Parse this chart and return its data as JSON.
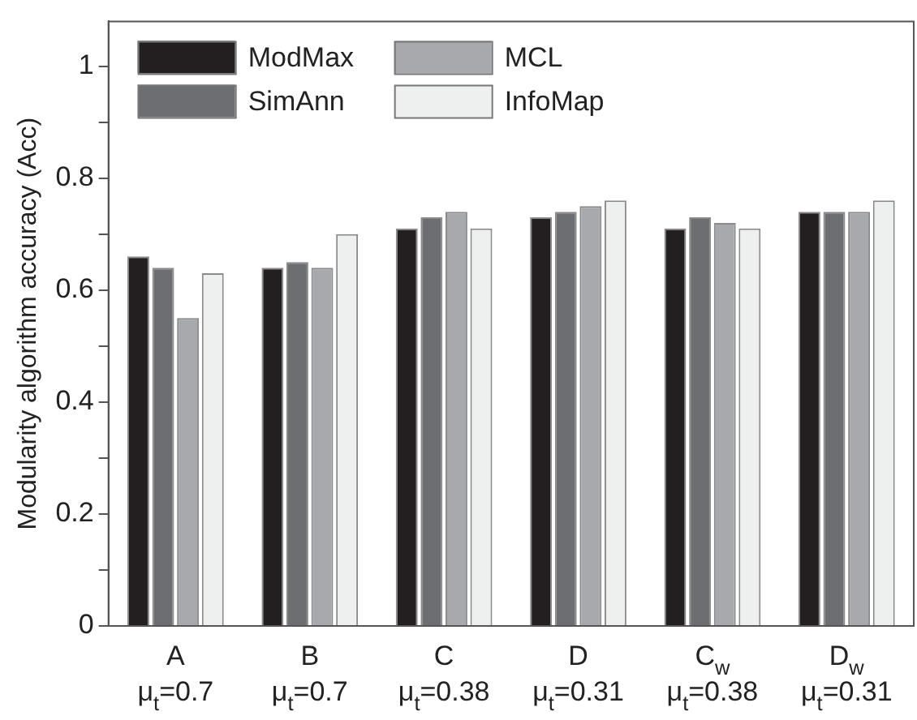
{
  "chart_data": {
    "type": "bar",
    "ylabel": "Modularity algorithm accuracy (Acc)",
    "categories": [
      "A\nμ$_{t}$=0.7",
      "B\nμ$_{t}$=0.7",
      "C\nμ$_{t}$=0.38",
      "D\nμ$_{t}$=0.31",
      "C$_{w}$\nμ$_{t}$=0.38",
      "D$_{w}$\nμ$_{t}$=0.31"
    ],
    "series": [
      {
        "name": "ModMax",
        "color": "#231f20",
        "values": [
          0.66,
          0.64,
          0.71,
          0.73,
          0.71,
          0.74
        ]
      },
      {
        "name": "SimAnn",
        "color": "#6d6e71",
        "values": [
          0.64,
          0.65,
          0.73,
          0.74,
          0.73,
          0.74
        ]
      },
      {
        "name": "MCL",
        "color": "#a7a9ac",
        "values": [
          0.55,
          0.64,
          0.74,
          0.75,
          0.72,
          0.74
        ]
      },
      {
        "name": "InfoMap",
        "color": "#eef0ef",
        "values": [
          0.63,
          0.7,
          0.71,
          0.76,
          0.71,
          0.76
        ]
      }
    ],
    "ylim": [
      0,
      1.08
    ],
    "yticks": [
      0,
      {
        "value": 0.1,
        "label": null
      },
      0.2,
      {
        "value": 0.3,
        "label": null
      },
      0.4,
      {
        "value": 0.5,
        "label": null
      },
      0.6,
      {
        "value": 0.7,
        "label": null
      },
      0.8,
      {
        "value": 0.9,
        "label": null
      },
      1
    ],
    "grid": false,
    "legend": "top left"
  }
}
